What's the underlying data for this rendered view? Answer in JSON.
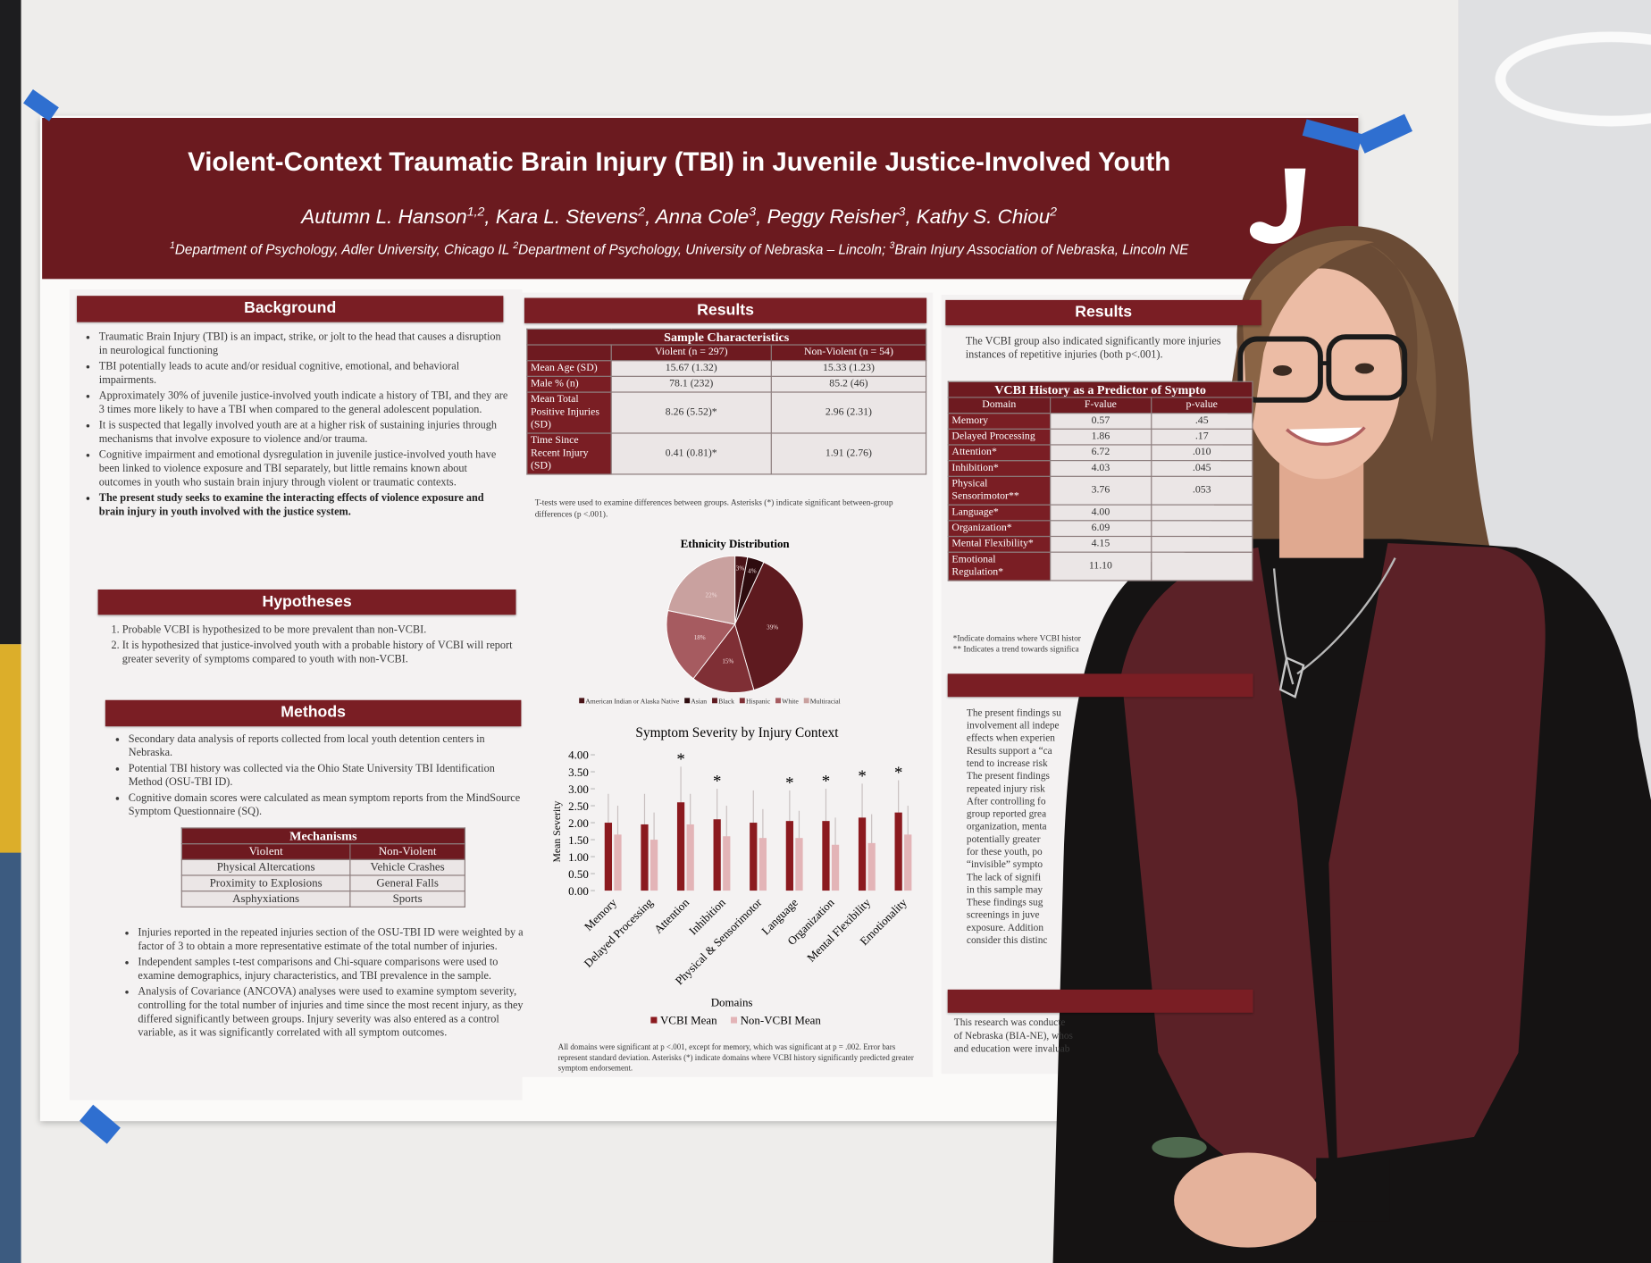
{
  "header": {
    "title": "Violent-Context Traumatic Brain Injury (TBI) in Juvenile Justice-Involved Youth",
    "authors": [
      {
        "text": "Autumn L. Hanson",
        "sup": "1,2"
      },
      {
        "text": ", Kara L. Stevens",
        "sup": "2"
      },
      {
        "text": ", Anna Cole",
        "sup": "3"
      },
      {
        "text": ", Peggy Reisher",
        "sup": "3"
      },
      {
        "text": ", Kathy S. Chiou",
        "sup": "2"
      }
    ],
    "affiliations": [
      {
        "sup": "1",
        "text": "Department of Psychology, Adler University, Chicago IL "
      },
      {
        "sup": "2",
        "text": "Department of Psychology, University of Nebraska – Lincoln; "
      },
      {
        "sup": "3",
        "text": "Brain Injury Association of Nebraska, Lincoln NE"
      }
    ]
  },
  "background": {
    "heading": "Background",
    "bullets": [
      "Traumatic Brain Injury (TBI) is an impact, strike, or jolt to the head that causes a disruption in neurological functioning",
      "TBI potentially leads to acute and/or residual cognitive, emotional, and behavioral impairments.",
      "Approximately 30% of juvenile justice-involved youth indicate a history of TBI, and they are 3 times more likely to have a TBI when compared to the general adolescent population.",
      "It is suspected that legally involved youth are at a higher risk of sustaining injuries through mechanisms that involve exposure to violence and/or trauma.",
      "Cognitive impairment and emotional dysregulation in juvenile justice-involved youth have been linked to violence exposure and TBI separately, but little remains known about outcomes in youth who sustain brain injury through violent or traumatic contexts."
    ],
    "emphasis": "The present study seeks to examine the interacting effects of violence exposure and brain injury in youth involved with the justice system."
  },
  "hypotheses": {
    "heading": "Hypotheses",
    "items": [
      "Probable VCBI is hypothesized to be more prevalent than non-VCBI.",
      "It is hypothesized that justice-involved youth with a probable history of VCBI will report greater severity of symptoms compared to youth with non-VCBI."
    ]
  },
  "methods": {
    "heading": "Methods",
    "bullets_top": [
      "Secondary data analysis of reports collected from local youth detention centers in Nebraska.",
      "Potential TBI history was collected via the Ohio State University TBI Identification Method (OSU-TBI ID).",
      "Cognitive domain scores were calculated as mean symptom reports from the MindSource Symptom Questionnaire (SQ)."
    ],
    "mechanisms": {
      "title": "Mechanisms",
      "headers": [
        "Violent",
        "Non-Violent"
      ],
      "rows": [
        [
          "Physical Altercations",
          "Vehicle Crashes"
        ],
        [
          "Proximity to Explosions",
          "General Falls"
        ],
        [
          "Asphyxiations",
          "Sports"
        ]
      ]
    },
    "bullets_bottom": [
      "Injuries reported in the repeated injuries section of the OSU-TBI ID were weighted by a factor of 3 to obtain a more representative estimate of the total number of injuries.",
      "Independent samples t-test comparisons and Chi-square comparisons were used to examine demographics, injury characteristics, and TBI prevalence in the sample.",
      "Analysis of Covariance (ANCOVA) analyses were used to examine symptom severity, controlling for the total number of injuries and time since the most recent injury, as they differed significantly between groups. Injury severity was also entered as a control variable, as it was significantly correlated with all symptom outcomes."
    ]
  },
  "results_middle": {
    "heading": "Results",
    "sample": {
      "title": "Sample Characteristics",
      "headers": [
        "Violent (n = 297)",
        "Non-Violent (n = 54)"
      ],
      "rows": [
        [
          "Mean Age (SD)",
          "15.67 (1.32)",
          "15.33 (1.23)"
        ],
        [
          "Male % (n)",
          "78.1 (232)",
          "85.2 (46)"
        ],
        [
          "Mean Total Positive Injuries (SD)",
          "8.26 (5.52)*",
          "2.96 (2.31)"
        ],
        [
          "Time Since Recent Injury (SD)",
          "0.41 (0.81)*",
          "1.91 (2.76)"
        ]
      ]
    },
    "sample_note": "T-tests were used to examine differences between groups. Asterisks (*) indicate significant between-group differences (p <.001)."
  },
  "chart_data": [
    {
      "type": "pie",
      "title": "Ethnicity Distribution",
      "categories": [
        "American Indian or Alaska Native",
        "Asian",
        "Black",
        "Hispanic",
        "White",
        "Multiracial"
      ],
      "values": [
        3,
        4,
        39,
        15,
        18,
        22
      ],
      "value_labels": [
        "3%",
        "4%",
        "39%",
        "15%",
        "18%",
        "22%"
      ],
      "colors": [
        "#4a1418",
        "#2e0c0f",
        "#5e1a1f",
        "#7f2f35",
        "#a65b60",
        "#c9a19f"
      ]
    },
    {
      "type": "bar",
      "title": "Symptom Severity by Injury Context",
      "x_label": "Domains",
      "y_label": "Mean Severity",
      "categories": [
        "Memory",
        "Delayed Processing",
        "Attention",
        "Inhibition",
        "Physical & Sensorimotor",
        "Language",
        "Organization",
        "Mental Flexibility",
        "Emotionality"
      ],
      "series": [
        {
          "name": "VCBI Mean",
          "color": "#8b1a1f",
          "values": [
            2.0,
            1.95,
            2.6,
            2.1,
            2.0,
            2.05,
            2.05,
            2.15,
            2.3
          ],
          "errors": [
            0.85,
            0.9,
            1.05,
            0.9,
            0.95,
            0.9,
            0.95,
            1.0,
            0.95
          ]
        },
        {
          "name": "Non-VCBI Mean",
          "color": "#e3b4b7",
          "values": [
            1.65,
            1.5,
            1.95,
            1.6,
            1.55,
            1.55,
            1.35,
            1.4,
            1.65
          ],
          "errors": [
            0.85,
            0.8,
            0.9,
            0.9,
            0.85,
            0.8,
            0.8,
            0.85,
            0.85
          ]
        }
      ],
      "annotations": [
        null,
        null,
        "*",
        "*",
        null,
        "*",
        "*",
        "*",
        "*"
      ],
      "ylim": [
        0,
        4
      ],
      "yticks": [
        {
          "value": 0,
          "label": "0.00"
        },
        {
          "value": 0.5,
          "label": "0.50"
        },
        {
          "value": 1,
          "label": "1.00"
        },
        {
          "value": 1.5,
          "label": "1.50"
        },
        {
          "value": 2,
          "label": "2.00"
        },
        {
          "value": 2.5,
          "label": "2.50"
        },
        {
          "value": 3,
          "label": "3.00"
        },
        {
          "value": 3.5,
          "label": "3.50"
        },
        {
          "value": 4,
          "label": "4.00"
        }
      ],
      "note": "All domains were significant at p <.001, except for memory, which was significant at p = .002. Error bars represent standard deviation. Asterisks (*) indicate domains where VCBI history significantly predicted greater symptom endorsement."
    }
  ],
  "results_right": {
    "heading": "Results",
    "lines": [
      "The VCBI group also indicated significantly more injuries",
      "instances of repetitive injuries (both p<.001)."
    ],
    "predictor": {
      "title": "VCBI History as a Predictor of Sympto",
      "headers": [
        "Domain",
        "F-value",
        "p-value"
      ],
      "rows": [
        [
          "Memory",
          "0.57",
          ".45"
        ],
        [
          "Delayed Processing",
          "1.86",
          ".17"
        ],
        [
          "Attention*",
          "6.72",
          ".010"
        ],
        [
          "Inhibition*",
          "4.03",
          ".045"
        ],
        [
          "Physical Sensorimotor**",
          "3.76",
          ".053"
        ],
        [
          "Language*",
          "4.00",
          null
        ],
        [
          "Organization*",
          "6.09",
          null
        ],
        [
          "Mental Flexibility*",
          "4.15",
          null
        ],
        [
          "Emotional Regulation*",
          "11.10",
          null
        ]
      ]
    },
    "notes": [
      "*Indicate domains where VCBI histor",
      "** Indicates a trend towards significa"
    ],
    "conclusion_lines": [
      "The present findings su",
      "involvement all indepe",
      "effects when experien",
      "Results support a “ca",
      "tend to increase risk",
      "The present findings",
      "repeated injury risk",
      "After controlling fo",
      "group reported grea",
      "organization, menta",
      "potentially greater",
      "for these youth, po",
      "“invisible” sympto",
      "The lack of signifi",
      "in this sample may",
      "These findings sug",
      "screenings in juve",
      "exposure. Addition",
      "consider this distinc"
    ],
    "acknowledgment_lines": [
      "This research was conducte",
      "of Nebraska (BIA-NE), whos",
      "and education were invaluab"
    ]
  }
}
